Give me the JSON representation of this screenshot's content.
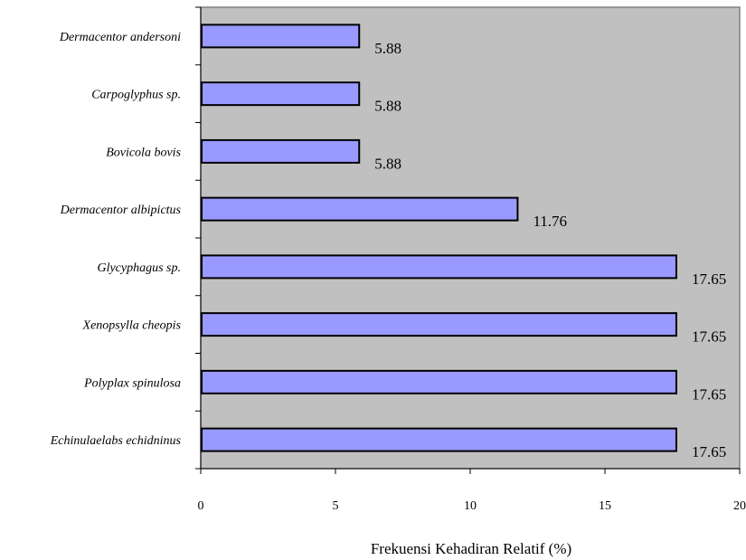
{
  "chart_data": {
    "type": "bar",
    "orientation": "horizontal",
    "title": "",
    "xlabel": "Frekuensi Kehadiran Relatif (%)",
    "ylabel": "",
    "categories": [
      "Dermacentor andersoni",
      "Carpoglyphus sp.",
      "Bovicola bovis",
      "Dermacentor albipictus",
      "Glycyphagus sp.",
      "Xenopsylla cheopis",
      "Polyplax spinulosa",
      "Echinulaelabs echidninus"
    ],
    "values": [
      5.88,
      5.88,
      5.88,
      11.76,
      17.65,
      17.65,
      17.65,
      17.65
    ],
    "data_labels": [
      "5.88",
      "5.88",
      "5.88",
      "11.76",
      "17.65",
      "17.65",
      "17.65",
      "17.65"
    ],
    "xlim": [
      0,
      20
    ],
    "x_ticks": [
      0,
      5,
      10,
      15,
      20
    ],
    "x_tick_labels": [
      "0",
      "5",
      "10",
      "15",
      "20"
    ],
    "grid": false,
    "legend": "none",
    "colors": {
      "bar_fill": "#9999ff",
      "bar_stroke": "#000000",
      "plot_background": "#c0c0c0"
    }
  }
}
